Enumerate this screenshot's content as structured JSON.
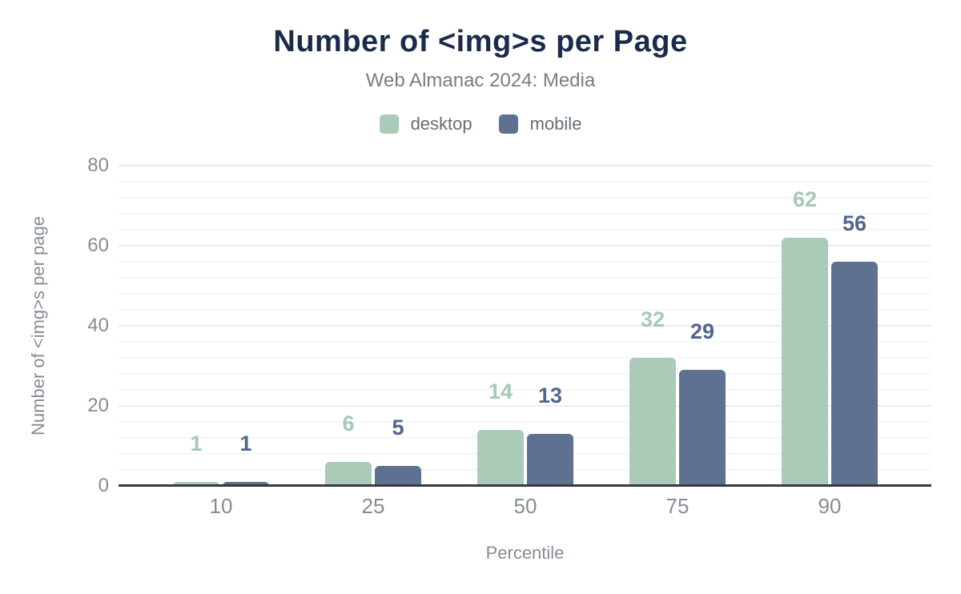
{
  "chart_data": {
    "type": "bar",
    "title": "Number of <img>s per Page",
    "subtitle": "Web Almanac 2024: Media",
    "xlabel": "Percentile",
    "ylabel": "Number of <img>s per page",
    "categories": [
      "10",
      "25",
      "50",
      "75",
      "90"
    ],
    "series": [
      {
        "name": "desktop",
        "color": "#a9cbb8",
        "label_color": "#a5c9b5",
        "values": [
          1,
          6,
          14,
          32,
          62
        ]
      },
      {
        "name": "mobile",
        "color": "#5e7190",
        "label_color": "#51668b",
        "values": [
          1,
          5,
          13,
          29,
          56
        ]
      }
    ],
    "ylim": [
      0,
      80
    ],
    "yticks": [
      0,
      20,
      40,
      60,
      80
    ],
    "grid": "horizontal; major every 20, minor every 4",
    "legend_position": "top",
    "value_labels": true
  },
  "colors": {
    "title": "#1b2b4a",
    "subtitle": "#767e88",
    "axis_text": "#868c93",
    "axis_line": "#37393c",
    "gridline_major": "#ebebed",
    "gridline_minor": "#f6f6f8",
    "background": "#ffffff"
  }
}
